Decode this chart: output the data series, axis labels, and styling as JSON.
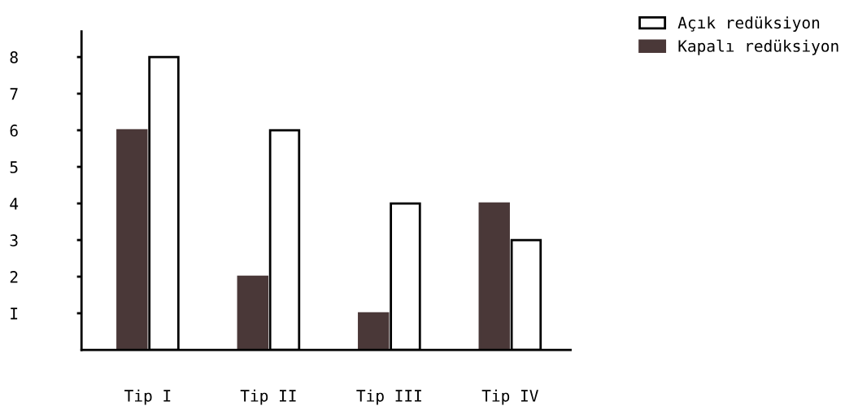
{
  "chart_data": {
    "type": "bar",
    "categories": [
      "Tip I",
      "Tip II",
      "Tip III",
      "Tip IV"
    ],
    "series": [
      {
        "name": "Kapalı redüksiyon",
        "color": "#4a3838",
        "values": [
          6,
          2,
          1,
          4
        ]
      },
      {
        "name": "Açık redüksiyon",
        "color": "#ffffff",
        "values": [
          8,
          6,
          4,
          3
        ]
      }
    ],
    "ylim": [
      0,
      8.7
    ],
    "yticks": [
      {
        "value": 1,
        "label": "I"
      },
      2,
      3,
      4,
      5,
      6,
      7,
      8
    ],
    "grid": false,
    "legend": "top right"
  }
}
